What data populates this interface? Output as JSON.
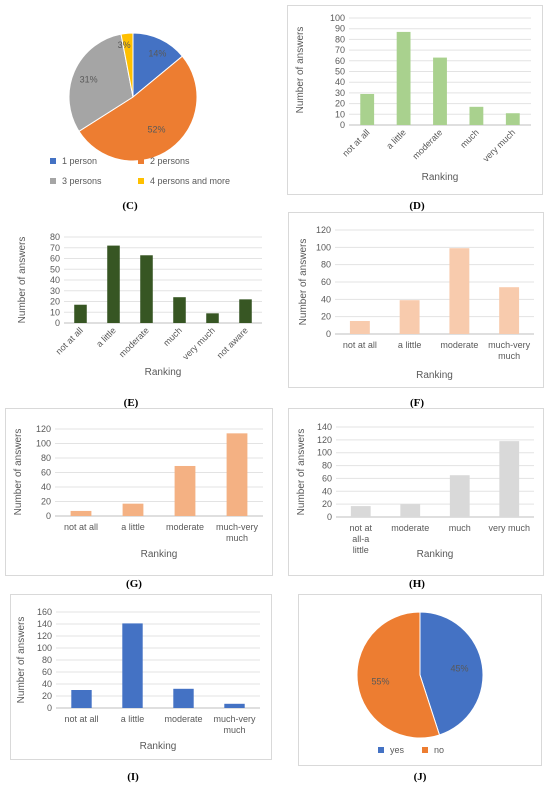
{
  "chart_data": [
    {
      "panel": "(C)",
      "type": "pie",
      "labels": [
        "1 person",
        "2 persons",
        "3 persons",
        "4 persons and more"
      ],
      "values": [
        14,
        52,
        31,
        3
      ],
      "value_labels": [
        "14%",
        "52%",
        "31%",
        "3%"
      ],
      "colors": [
        "#4472c4",
        "#ed7d31",
        "#a5a5a5",
        "#ffc000"
      ],
      "legend": "bottom"
    },
    {
      "panel": "(D)",
      "type": "bar",
      "categories": [
        "not at all",
        "a little",
        "moderate",
        "much",
        "very much"
      ],
      "values": [
        29,
        87,
        63,
        17,
        11
      ],
      "ylabel": "Number of answers",
      "xlabel": "Ranking",
      "ylim": [
        0,
        100
      ],
      "yticks": [
        0,
        10,
        20,
        30,
        40,
        50,
        60,
        70,
        80,
        90,
        100
      ],
      "color": "#a9d18e",
      "grid": true
    },
    {
      "panel": "(E)",
      "type": "bar",
      "categories": [
        "not at all",
        "a little",
        "moderate",
        "much",
        "very much",
        "not aware"
      ],
      "values": [
        17,
        72,
        63,
        24,
        9,
        22
      ],
      "ylabel": "Number of answers",
      "xlabel": "Ranking",
      "ylim": [
        0,
        80
      ],
      "yticks": [
        0,
        10,
        20,
        30,
        40,
        50,
        60,
        70,
        80
      ],
      "color": "#375623",
      "grid": true
    },
    {
      "panel": "(F)",
      "type": "bar",
      "categories": [
        "not at all",
        "a little",
        "moderate",
        "much-very much"
      ],
      "values": [
        15,
        39,
        99,
        54
      ],
      "ylabel": "Number of answers",
      "xlabel": "Ranking",
      "ylim": [
        0,
        120
      ],
      "yticks": [
        0,
        20,
        40,
        60,
        80,
        100,
        120
      ],
      "color": "#f8cbad",
      "grid": true
    },
    {
      "panel": "(G)",
      "type": "bar",
      "categories": [
        "not at all",
        "a little",
        "moderate",
        "much-very much"
      ],
      "values": [
        7,
        17,
        69,
        114
      ],
      "ylabel": "Number of answers",
      "xlabel": "Ranking",
      "ylim": [
        0,
        120
      ],
      "yticks": [
        0,
        20,
        40,
        60,
        80,
        100,
        120
      ],
      "color": "#f4b183",
      "grid": true
    },
    {
      "panel": "(H)",
      "type": "bar",
      "categories": [
        "not at all-a little",
        "moderate",
        "much",
        "very much"
      ],
      "values": [
        17,
        20,
        65,
        118
      ],
      "ylabel": "Number of answers",
      "xlabel": "Ranking",
      "ylim": [
        0,
        140
      ],
      "yticks": [
        0,
        20,
        40,
        60,
        80,
        100,
        120,
        140
      ],
      "color": "#d9d9d9",
      "grid": true
    },
    {
      "panel": "(I)",
      "type": "bar",
      "categories": [
        "not at all",
        "a little",
        "moderate",
        "much-very much"
      ],
      "values": [
        30,
        141,
        32,
        7
      ],
      "ylabel": "Number of answers",
      "xlabel": "Ranking",
      "ylim": [
        0,
        160
      ],
      "yticks": [
        0,
        20,
        40,
        60,
        80,
        100,
        120,
        140,
        160
      ],
      "color": "#4472c4",
      "grid": true
    },
    {
      "panel": "(J)",
      "type": "pie",
      "labels": [
        "yes",
        "no"
      ],
      "values": [
        45,
        55
      ],
      "value_labels": [
        "45%",
        "55%"
      ],
      "colors": [
        "#4472c4",
        "#ed7d31"
      ],
      "legend": "bottom"
    }
  ]
}
